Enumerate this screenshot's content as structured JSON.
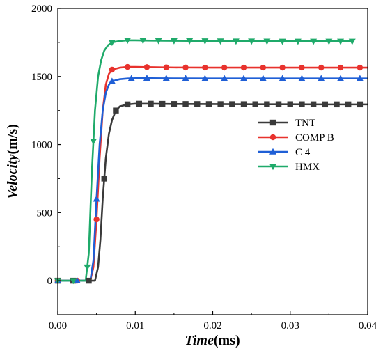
{
  "chart_data": {
    "type": "line",
    "xlabel_italic": "Time",
    "xlabel_unit": "(ms)",
    "ylabel_italic": "Velocity",
    "ylabel_unit": "(m/s)",
    "xlim": [
      0,
      0.04
    ],
    "ylim": [
      -250,
      2000
    ],
    "xticks": [
      0,
      0.01,
      0.02,
      0.03,
      0.04
    ],
    "xtick_labels": [
      "0.00",
      "0.01",
      "0.02",
      "0.03",
      "0.04"
    ],
    "yticks": [
      0,
      500,
      1000,
      1500,
      2000
    ],
    "ytick_labels": [
      "0",
      "500",
      "1000",
      "1500",
      "2000"
    ],
    "grid": false,
    "legend_position": "center-right",
    "series": [
      {
        "name": "TNT",
        "color": "#3a3a3a",
        "marker": "square",
        "x": [
          0,
          0.002,
          0.004,
          0.0048,
          0.0052,
          0.0055,
          0.0058,
          0.0062,
          0.0066,
          0.007,
          0.0075,
          0.008,
          0.009,
          0.01,
          0.012,
          0.015,
          0.02,
          0.025,
          0.03,
          0.035,
          0.04
        ],
        "y": [
          0,
          0,
          0,
          0,
          100,
          300,
          600,
          900,
          1080,
          1180,
          1250,
          1280,
          1295,
          1300,
          1300,
          1298,
          1297,
          1296,
          1296,
          1295,
          1295
        ],
        "marker_x": [
          0,
          0.002,
          0.004,
          0.006,
          0.0075,
          0.009,
          0.0105,
          0.012,
          0.0135,
          0.015,
          0.0165,
          0.018,
          0.0195,
          0.021,
          0.0225,
          0.024,
          0.0255,
          0.027,
          0.0285,
          0.03,
          0.0315,
          0.033,
          0.0345,
          0.036,
          0.0375,
          0.039
        ]
      },
      {
        "name": "COMP B",
        "color": "#e8322d",
        "marker": "circle",
        "x": [
          0,
          0.002,
          0.0042,
          0.0046,
          0.005,
          0.0054,
          0.0058,
          0.0062,
          0.0066,
          0.007,
          0.008,
          0.009,
          0.01,
          0.012,
          0.015,
          0.02,
          0.03,
          0.04
        ],
        "y": [
          0,
          0,
          0,
          100,
          450,
          900,
          1250,
          1440,
          1520,
          1550,
          1565,
          1570,
          1570,
          1568,
          1566,
          1565,
          1565,
          1565
        ],
        "marker_x": [
          0,
          0.0025,
          0.005,
          0.007,
          0.009,
          0.0115,
          0.014,
          0.0165,
          0.019,
          0.0215,
          0.024,
          0.0265,
          0.029,
          0.0315,
          0.034,
          0.0365,
          0.039
        ]
      },
      {
        "name": "C 4",
        "color": "#1f5fd6",
        "marker": "triangle",
        "x": [
          0,
          0.002,
          0.0042,
          0.0046,
          0.005,
          0.0054,
          0.0058,
          0.0062,
          0.0066,
          0.007,
          0.008,
          0.009,
          0.01,
          0.012,
          0.015,
          0.02,
          0.03,
          0.04
        ],
        "y": [
          0,
          0,
          0,
          150,
          600,
          1000,
          1250,
          1380,
          1440,
          1465,
          1480,
          1485,
          1487,
          1487,
          1486,
          1485,
          1485,
          1485
        ],
        "marker_x": [
          0,
          0.0025,
          0.005,
          0.007,
          0.0095,
          0.0115,
          0.014,
          0.0165,
          0.019,
          0.0215,
          0.024,
          0.0265,
          0.029,
          0.0315,
          0.034,
          0.0365,
          0.039
        ]
      },
      {
        "name": "HMX",
        "color": "#1faa6a",
        "marker": "triangle-down",
        "x": [
          0,
          0.002,
          0.0036,
          0.004,
          0.0044,
          0.0048,
          0.0052,
          0.0056,
          0.006,
          0.0065,
          0.007,
          0.008,
          0.009,
          0.01,
          0.012,
          0.015,
          0.02,
          0.03,
          0.038
        ],
        "y": [
          0,
          0,
          0,
          200,
          800,
          1250,
          1500,
          1620,
          1690,
          1730,
          1750,
          1760,
          1765,
          1765,
          1763,
          1762,
          1760,
          1758,
          1758
        ],
        "marker_x": [
          0,
          0.002,
          0.0038,
          0.0046,
          0.007,
          0.009,
          0.011,
          0.013,
          0.015,
          0.017,
          0.019,
          0.021,
          0.023,
          0.025,
          0.027,
          0.029,
          0.031,
          0.033,
          0.035,
          0.0365,
          0.038
        ]
      }
    ]
  }
}
